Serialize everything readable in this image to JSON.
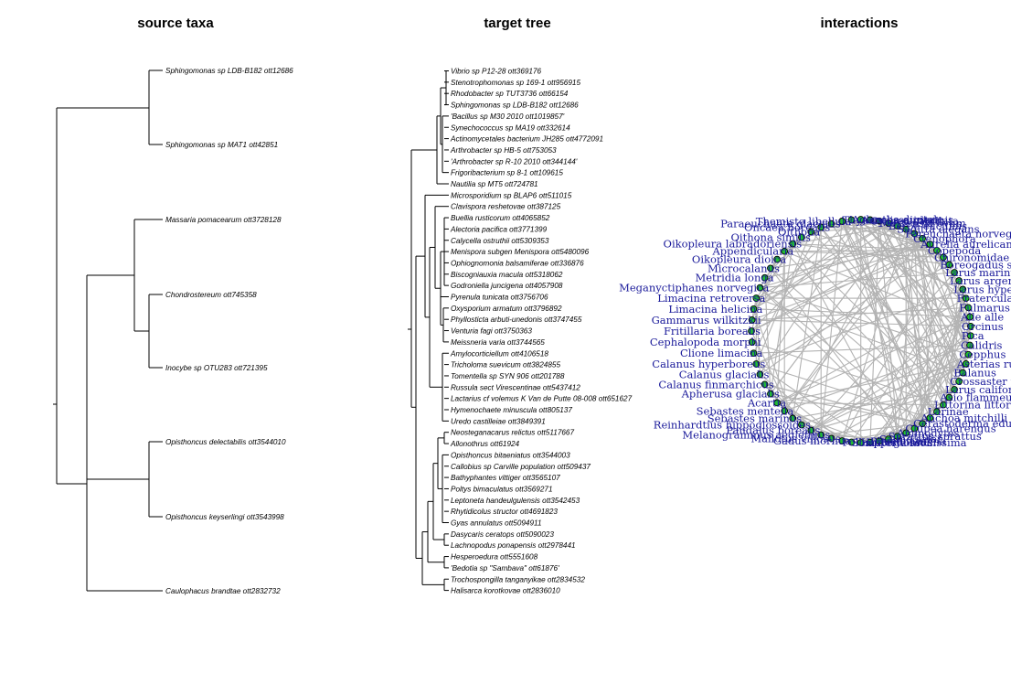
{
  "panels": {
    "source_title": "source taxa",
    "target_title": "target tree",
    "interactions_title": "interactions"
  },
  "source_taxa": [
    "Sphingomonas sp LDB-B182 ott12686",
    "Sphingomonas sp MAT1 ott42851",
    "Massaria pomacearum ott3728128",
    "Chondrostereum ott745358",
    "Inocybe sp OTU283 ott721395",
    "Opisthoncus delectabilis ott3544010",
    "Opisthoncus keyserlingi ott3543998",
    "Caulophacus brandtae ott2832732"
  ],
  "target_taxa": [
    "Vibrio sp P12-28 ott369176",
    "Stenotrophomonas sp 169-1 ott956915",
    "Rhodobacter sp TUT3736 ott66154",
    "Sphingomonas sp LDB-B182 ott12686",
    "'Bacillus sp M30 2010 ott1019857'",
    "Synechococcus sp MA19 ott332614",
    "Actinomycetales bacterium JH285 ott4772091",
    "Arthrobacter sp HB-5 ott753053",
    "'Arthrobacter sp R-10 2010 ott344144'",
    "Frigoribacterium sp 8-1 ott109615",
    "Nautilia sp MT5 ott724781",
    "Microsporidium sp BLAP6 ott511015",
    "Clavispora reshetovae ott387125",
    "Buellia rusticorum ott4065852",
    "Alectoria pacifica ott3771399",
    "Calycella ostruthii ott5309353",
    "Menispora subgen Menispora ott5480096",
    "Ophiognomonia balsamiferae ott336876",
    "Biscogniauxia macula ott5318062",
    "Godroniella juncigena ott4057908",
    "Pyrenula tunicata ott3756706",
    "Oxysporium armatum ott3796892",
    "Phyllosticta arbuti-unedonis ott3747455",
    "Venturia fagi ott3750363",
    "Meissneria varia ott3744565",
    "Amylocorticiellum ott4106518",
    "Tricholoma suevicum ott3824855",
    "Tomentella sp SYN 906 ott201788",
    "Russula sect Virescentinae ott5437412",
    "Lactarius cf volemus K Van de Putte 08-008 ott651627",
    "Hymenochaete minuscula ott805137",
    "Uredo castilleiae ott3849391",
    "Neosteganacarus relictus ott5117667",
    "Allonothrus ott61924",
    "Opisthoncus bitaeniatus ott3544003",
    "Callobius sp Carville population ott509437",
    "Bathyphantes vittiger ott3565107",
    "Poltys bimaculatus ott3569271",
    "Leptoneta handeulgulensis ott3542453",
    "Rhytidicolus structor ott4691823",
    "Gyas annulatus ott5094911",
    "Dasycaris ceratops ott5090023",
    "Lachnopodus ponapensis ott2978441",
    "Hesperoedura ott5551608",
    "'Bedotia sp \"Sambava\" ott61876'",
    "Trochospongilla tanganyikae ott2834532",
    "Halisarca korotkovae ott2836010"
  ],
  "interaction_nodes_left": [
    "Themisto libellula",
    "Paraeuchaeta glacialis",
    "Oncaea borealis",
    "Oithona",
    "Oithona similis",
    "Oikopleura labradoriensis",
    "Appendicularia",
    "Oikopleura dioica",
    "Microcalanus",
    "Metridia longa",
    "Meganyctiphanes norvegica",
    "Limacina retroversa",
    "Limacina helicina",
    "Gammarus wilkitzkii",
    "Fritillaria borealis",
    "Cephalopoda morphi",
    "Clione limacina",
    "Calanus hyperboreus",
    "Calanus glacialis",
    "Calanus finmarchicus",
    "Apherusa glacialis",
    "Acartia",
    "Sebastes mentella",
    "Sebastes marinus",
    "Reinhardtius hippoglossoides",
    "Pandalus borealis",
    "Melanogrammus aeglefinus",
    "Mallotus villosus",
    "Gadus morhua"
  ],
  "interaction_nodes_right": [
    "Thysanoessa inermis",
    "Aglantha digitale",
    "Aurelia aurita",
    "Cyanea capillata",
    "Mertensia ovum",
    "Beroe cucumis",
    "Sagitta elegans",
    "Pareuchaeta norvegica",
    "Ctenophora",
    "Aurelia aurelicana",
    "Copepoda",
    "Chironomidae",
    "Boreogadus saida",
    "Larus marinus",
    "Larus argentatus",
    "Larus hyperboreus",
    "Fratercula arctica",
    "Fulmarus glacialis",
    "Alle alle",
    "Orcinus",
    "Pica",
    "Calidris",
    "Cepphus",
    "Asterias rubens",
    "Balanus",
    "Crossaster papposus",
    "Larus californicus",
    "Asio flammeus",
    "Littorina littorea",
    "Larinae",
    "Anchoa mitchilli",
    "Cerastoderma edule",
    "Clupea harengus",
    "Ammodytes",
    "Sprattus sprattus",
    "Salmo salar",
    "Phoca vitulina",
    "Hippoglossus",
    "Somateria mollissima",
    "Pollachius virens"
  ]
}
